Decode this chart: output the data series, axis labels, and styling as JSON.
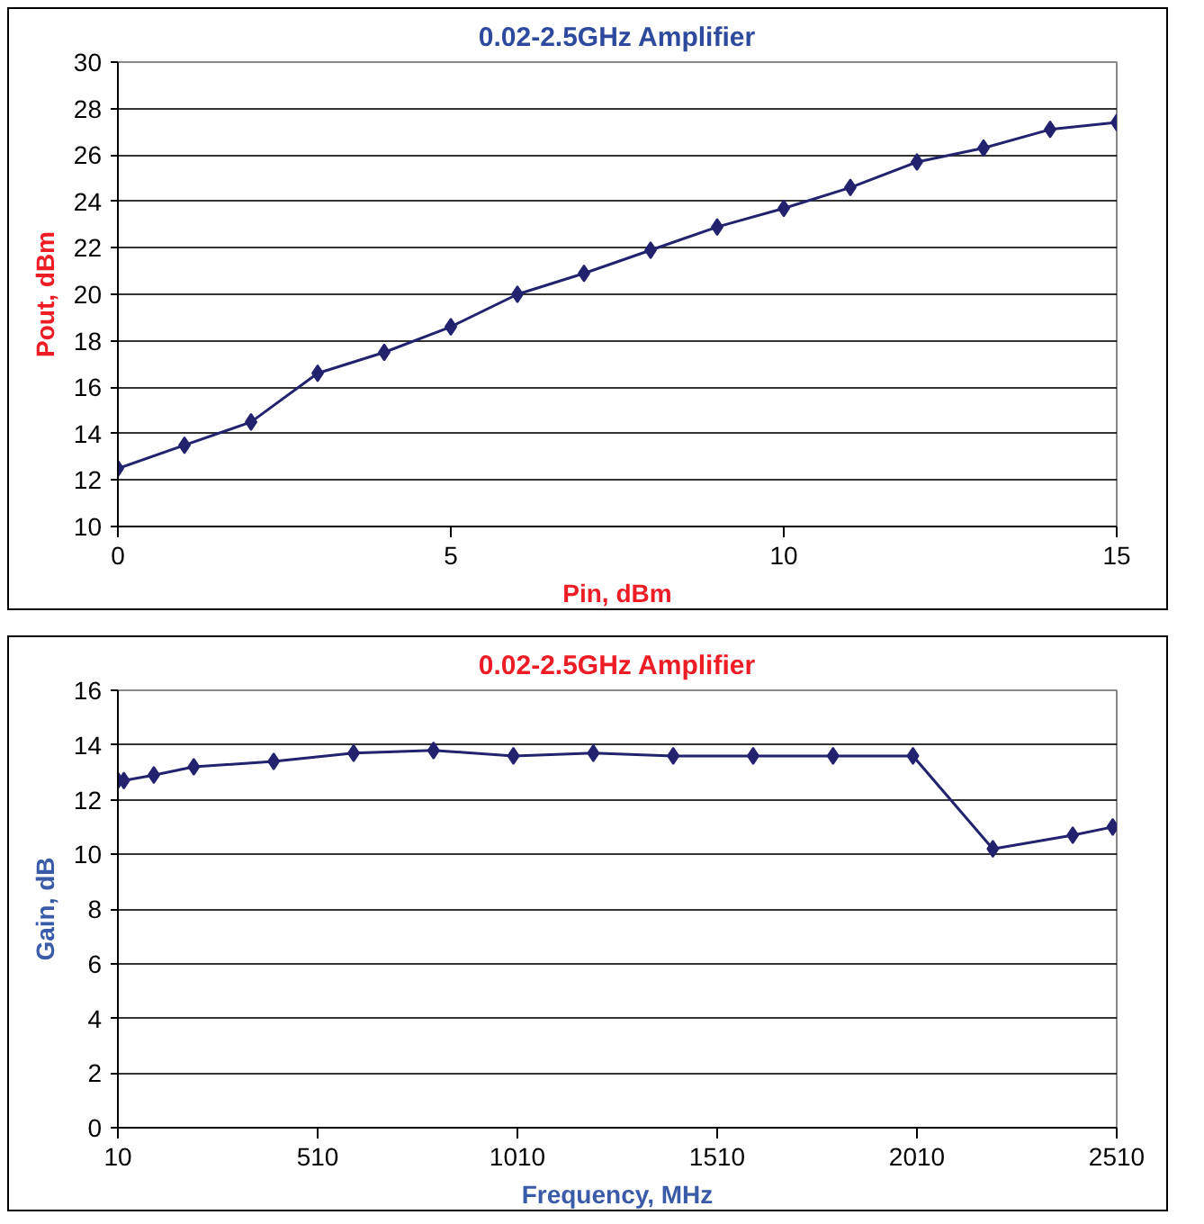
{
  "chart_data": [
    {
      "type": "line",
      "title": "0.02-2.5GHz Amplifier",
      "xlabel": "Pin, dBm",
      "ylabel": "Pout, dBm",
      "x": [
        0,
        1,
        2,
        3,
        4,
        5,
        6,
        7,
        8,
        9,
        10,
        11,
        12,
        13,
        14,
        15
      ],
      "series": [
        {
          "color": "#22226e",
          "values": [
            12.5,
            13.5,
            14.5,
            16.6,
            17.5,
            18.6,
            20.0,
            20.9,
            21.9,
            22.9,
            23.7,
            24.6,
            25.7,
            26.3,
            27.1,
            27.4
          ]
        }
      ],
      "xlim": [
        0,
        15
      ],
      "xticks": [
        0,
        5,
        10,
        15
      ],
      "ylim": [
        10,
        30
      ],
      "yticks": [
        10,
        12,
        14,
        16,
        18,
        20,
        22,
        24,
        26,
        28,
        30
      ],
      "grid": "y",
      "marker": "diamond",
      "line_style": "solid"
    },
    {
      "type": "line",
      "title": "0.02-2.5GHz Amplifier",
      "xlabel": "Frequency, MHz",
      "ylabel": "Gain, dB",
      "x": [
        10,
        25,
        100,
        200,
        400,
        600,
        800,
        1000,
        1200,
        1400,
        1600,
        1800,
        2000,
        2200,
        2400,
        2500
      ],
      "series": [
        {
          "color": "#22226e",
          "values": [
            12.7,
            12.7,
            12.9,
            13.2,
            13.4,
            13.7,
            13.8,
            13.6,
            13.7,
            13.6,
            13.6,
            13.6,
            13.6,
            10.2,
            10.7,
            11.0
          ]
        }
      ],
      "xlim": [
        10,
        2510
      ],
      "xticks": [
        10,
        510,
        1010,
        1510,
        2010,
        2510
      ],
      "ylim": [
        0,
        16
      ],
      "yticks": [
        0,
        2,
        4,
        6,
        8,
        10,
        12,
        14,
        16
      ],
      "grid": "y",
      "marker": "diamond",
      "line_style": "solid"
    }
  ]
}
